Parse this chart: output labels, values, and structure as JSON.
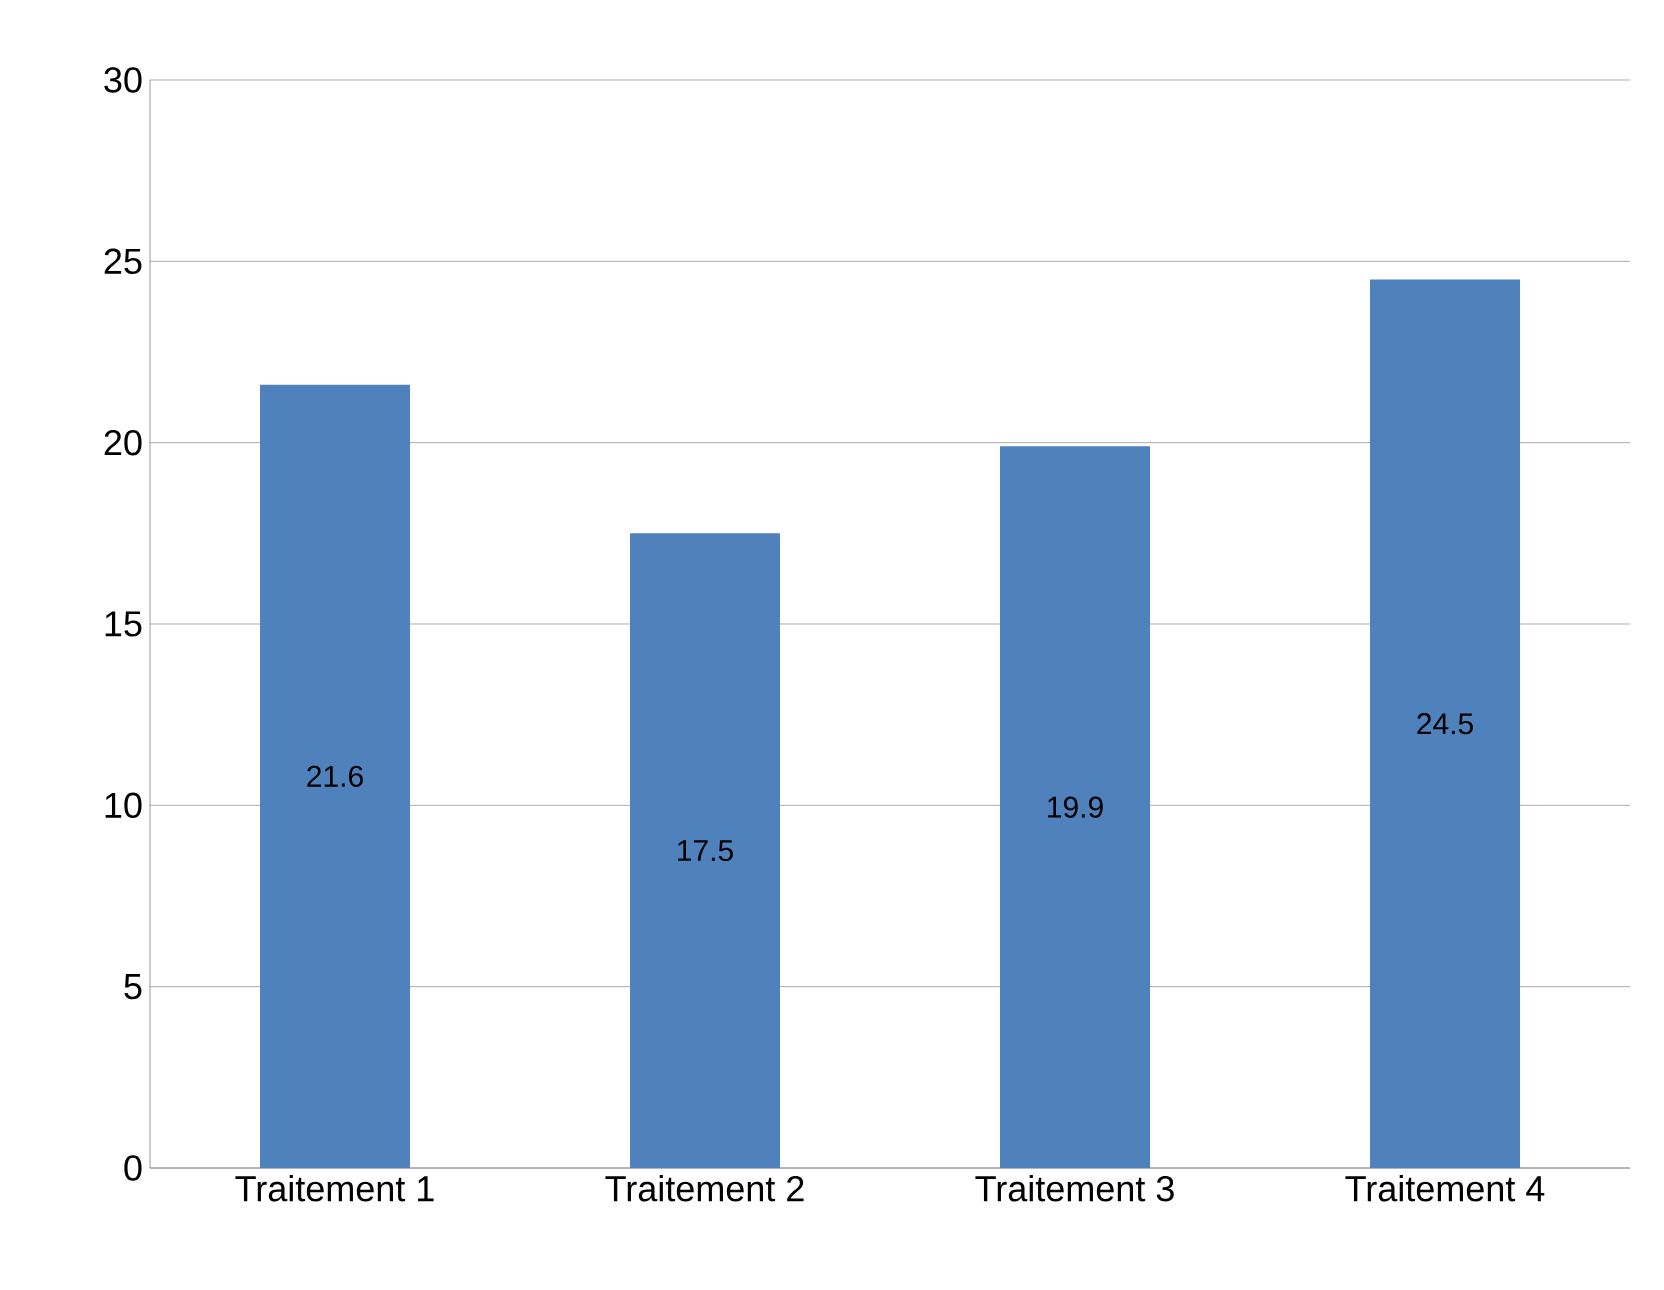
{
  "chart_data": {
    "type": "bar",
    "categories": [
      "Traitement 1",
      "Traitement 2",
      "Traitement 3",
      "Traitement 4"
    ],
    "values": [
      21.6,
      17.5,
      19.9,
      24.5
    ],
    "color": "#4f81bd",
    "ylim": [
      0,
      30
    ],
    "yticks": [
      0,
      5,
      10,
      15,
      20,
      25,
      30
    ],
    "grid": "y",
    "data_labels": true
  }
}
